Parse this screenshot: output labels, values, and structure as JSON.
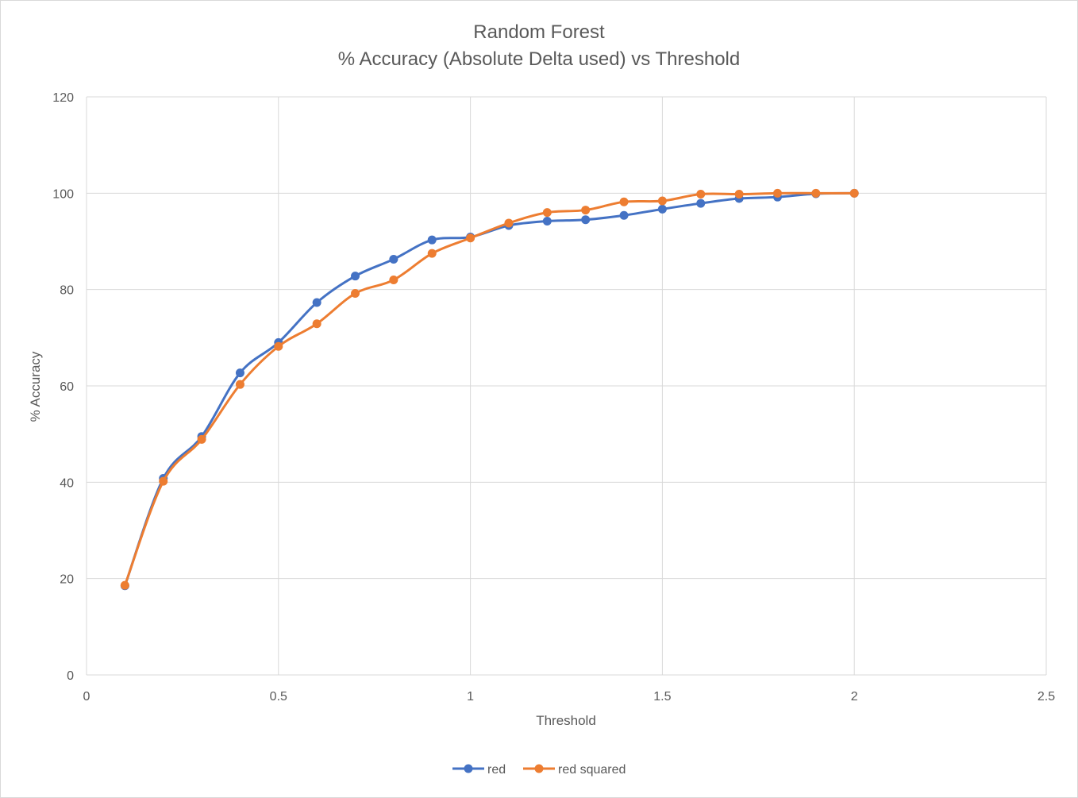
{
  "chart_data": {
    "type": "line",
    "title": [
      "Random Forest",
      "% Accuracy (Absolute Delta used) vs Threshold"
    ],
    "xlabel": "Threshold",
    "ylabel": "% Accuracy",
    "xlim": [
      0,
      2.5
    ],
    "ylim": [
      0,
      120
    ],
    "xticks": [
      0,
      0.5,
      1,
      1.5,
      2,
      2.5
    ],
    "xtick_labels": [
      "0",
      "0.5",
      "1",
      "1.5",
      "2",
      "2.5"
    ],
    "yticks": [
      0,
      20,
      40,
      60,
      80,
      100,
      120
    ],
    "ytick_labels": [
      "0",
      "20",
      "40",
      "60",
      "80",
      "100",
      "120"
    ],
    "grid": true,
    "legend_position": "bottom",
    "x": [
      0.1,
      0.2,
      0.3,
      0.4,
      0.5,
      0.6,
      0.7,
      0.8,
      0.9,
      1.0,
      1.1,
      1.2,
      1.3,
      1.4,
      1.5,
      1.6,
      1.7,
      1.8,
      1.9,
      2.0
    ],
    "series": [
      {
        "name": "red",
        "color": "#4472c4",
        "values": [
          18.5,
          40.8,
          49.5,
          62.7,
          69.0,
          77.3,
          82.8,
          86.3,
          90.3,
          90.9,
          93.3,
          94.2,
          94.5,
          95.4,
          96.7,
          97.9,
          98.9,
          99.2,
          99.9,
          100.0
        ]
      },
      {
        "name": "red squared",
        "color": "#ed7d31",
        "values": [
          18.6,
          40.2,
          48.9,
          60.3,
          68.2,
          72.9,
          79.2,
          82.0,
          87.5,
          90.7,
          93.8,
          96.0,
          96.5,
          98.2,
          98.4,
          99.8,
          99.8,
          100.0,
          100.0,
          100.0
        ]
      }
    ]
  }
}
